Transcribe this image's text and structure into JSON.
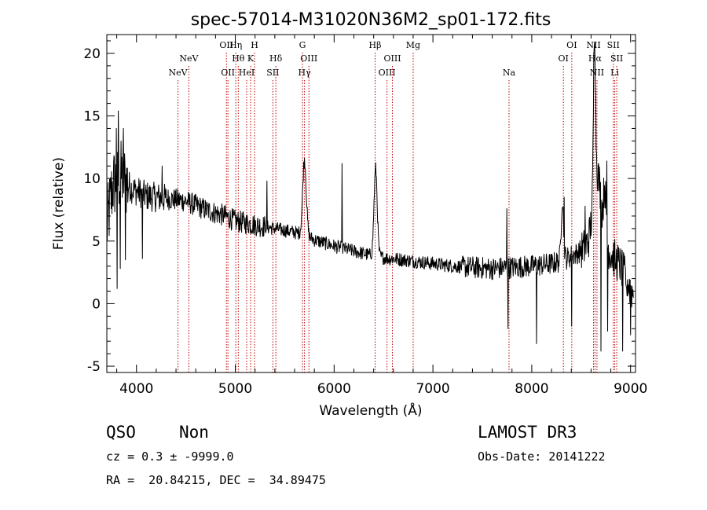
{
  "chart_data": {
    "type": "line",
    "title": "spec-57014-M31020N36M2_sp01-172.fits",
    "xlabel": "Wavelength (Å)",
    "ylabel": "Flux (relative)",
    "xlim": [
      3700,
      9050
    ],
    "ylim": [
      -5.5,
      21.5
    ],
    "x_ticks": [
      4000,
      5000,
      6000,
      7000,
      8000,
      9000
    ],
    "y_ticks": [
      -5,
      0,
      5,
      10,
      15,
      20
    ],
    "x_tick_labels": [
      "4000",
      "5000",
      "6000",
      "7000",
      "8000",
      "9000"
    ],
    "y_tick_labels": [
      "-5",
      "0",
      "5",
      "10",
      "15",
      "20"
    ],
    "spectrum_anchor_x": [
      3700,
      3760,
      3850,
      3950,
      4100,
      4300,
      4500,
      4700,
      4900,
      5000,
      5200,
      5400,
      5600,
      5700,
      5800,
      6000,
      6200,
      6400,
      6563,
      6600,
      6800,
      7000,
      7200,
      7400,
      7600,
      7800,
      8000,
      8200,
      8300,
      8350,
      8450,
      8550,
      8620,
      8660,
      8700,
      8800,
      8900,
      9000,
      9050
    ],
    "spectrum_anchor_y": [
      6.0,
      9.5,
      10.2,
      9.2,
      8.6,
      8.4,
      8.2,
      7.5,
      7.0,
      6.6,
      6.3,
      6.0,
      5.7,
      5.5,
      5.1,
      4.6,
      4.2,
      3.8,
      3.6,
      3.6,
      3.4,
      3.2,
      3.0,
      2.9,
      2.8,
      2.9,
      3.0,
      3.2,
      3.4,
      3.6,
      4.0,
      4.5,
      5.0,
      5.6,
      5.4,
      4.0,
      3.0,
      1.2,
      0.5
    ],
    "emission_features": [
      {
        "center": 5700,
        "peak": 6.0,
        "width": 18
      },
      {
        "center": 6420,
        "peak": 7.0,
        "width": 16
      },
      {
        "center": 8310,
        "peak": 5.0,
        "width": 12
      },
      {
        "center": 8635,
        "peak": 13.0,
        "width": 10
      },
      {
        "center": 8660,
        "peak": 5.0,
        "width": 40
      },
      {
        "center": 8740,
        "peak": 4.0,
        "width": 12
      }
    ],
    "spike_features": [
      {
        "x": 3795,
        "y": 14.0
      },
      {
        "x": 3805,
        "y": 1.2
      },
      {
        "x": 3815,
        "y": 15.4
      },
      {
        "x": 3835,
        "y": 2.8
      },
      {
        "x": 3870,
        "y": 14.0
      },
      {
        "x": 3890,
        "y": 3.5
      },
      {
        "x": 4060,
        "y": 3.6
      },
      {
        "x": 4260,
        "y": 11.0
      },
      {
        "x": 5320,
        "y": 9.8
      },
      {
        "x": 6080,
        "y": 11.2
      },
      {
        "x": 7750,
        "y": 7.6
      },
      {
        "x": 7760,
        "y": -2.0
      },
      {
        "x": 8050,
        "y": -3.2
      },
      {
        "x": 8330,
        "y": 8.5
      },
      {
        "x": 8405,
        "y": -1.8
      },
      {
        "x": 8540,
        "y": 7.8
      },
      {
        "x": 8700,
        "y": -3.8
      },
      {
        "x": 8760,
        "y": 11.4
      },
      {
        "x": 8770,
        "y": -2.2
      },
      {
        "x": 8850,
        "y": 3.2
      },
      {
        "x": 8920,
        "y": -3.8
      },
      {
        "x": 8960,
        "y": 1.2
      },
      {
        "x": 9000,
        "y": -2.5
      }
    ],
    "line_markers": [
      {
        "wl": 4420,
        "label": "NeV",
        "row": 3
      },
      {
        "wl": 4530,
        "label": "NeV",
        "row": 2
      },
      {
        "wl": 4910,
        "label": "OII",
        "row": 1
      },
      {
        "wl": 4925,
        "label": "OII",
        "row": 3
      },
      {
        "wl": 5005,
        "label": "Hη",
        "row": 1
      },
      {
        "wl": 5030,
        "label": "Hθ",
        "row": 2
      },
      {
        "wl": 5115,
        "label": "HeI",
        "row": 3
      },
      {
        "wl": 5155,
        "label": "K",
        "row": 2
      },
      {
        "wl": 5195,
        "label": "H",
        "row": 1
      },
      {
        "wl": 5380,
        "label": "SII",
        "row": 3
      },
      {
        "wl": 5410,
        "label": "Hδ",
        "row": 2
      },
      {
        "wl": 5680,
        "label": "G",
        "row": 1
      },
      {
        "wl": 5700,
        "label": "Hγ",
        "row": 3
      },
      {
        "wl": 5745,
        "label": "OIII",
        "row": 2
      },
      {
        "wl": 6415,
        "label": "Hβ",
        "row": 1
      },
      {
        "wl": 6535,
        "label": "OIII",
        "row": 3
      },
      {
        "wl": 6590,
        "label": "OIII",
        "row": 2
      },
      {
        "wl": 6800,
        "label": "Mg",
        "row": 1
      },
      {
        "wl": 7770,
        "label": "Na",
        "row": 3
      },
      {
        "wl": 8320,
        "label": "OI",
        "row": 2
      },
      {
        "wl": 8405,
        "label": "OI",
        "row": 1
      },
      {
        "wl": 8625,
        "label": "NII",
        "row": 1
      },
      {
        "wl": 8640,
        "label": "Hα",
        "row": 2
      },
      {
        "wl": 8660,
        "label": "NII",
        "row": 3
      },
      {
        "wl": 8825,
        "label": "SII",
        "row": 1
      },
      {
        "wl": 8840,
        "label": "Li",
        "row": 3
      },
      {
        "wl": 8860,
        "label": "SII",
        "row": 2
      }
    ],
    "colors": {
      "spectrum": "#000000",
      "markers": "#c00000",
      "axes": "#000000"
    }
  },
  "info": {
    "class": "QSO",
    "subclass": "Non",
    "survey": "LAMOST DR3",
    "cz": "cz = 0.3 ± -9999.0",
    "obs_date": "Obs-Date: 20141222",
    "coords": "RA =  20.84215, DEC =  34.89475"
  }
}
